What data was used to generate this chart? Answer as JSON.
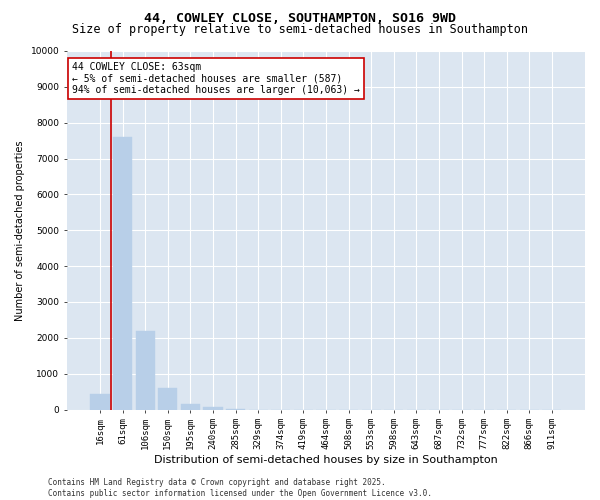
{
  "title": "44, COWLEY CLOSE, SOUTHAMPTON, SO16 9WD",
  "subtitle": "Size of property relative to semi-detached houses in Southampton",
  "xlabel": "Distribution of semi-detached houses by size in Southampton",
  "ylabel": "Number of semi-detached properties",
  "categories": [
    "16sqm",
    "61sqm",
    "106sqm",
    "150sqm",
    "195sqm",
    "240sqm",
    "285sqm",
    "329sqm",
    "374sqm",
    "419sqm",
    "464sqm",
    "508sqm",
    "553sqm",
    "598sqm",
    "643sqm",
    "687sqm",
    "732sqm",
    "777sqm",
    "822sqm",
    "866sqm",
    "911sqm"
  ],
  "values": [
    430,
    7600,
    2200,
    600,
    150,
    70,
    10,
    0,
    0,
    0,
    0,
    0,
    0,
    0,
    0,
    0,
    0,
    0,
    0,
    0,
    0
  ],
  "bar_color": "#b8cfe8",
  "bar_edge_color": "#b8cfe8",
  "annotation_text": "44 COWLEY CLOSE: 63sqm\n← 5% of semi-detached houses are smaller (587)\n94% of semi-detached houses are larger (10,063) →",
  "annotation_box_color": "#ffffff",
  "annotation_box_edgecolor": "#cc0000",
  "vline_color": "#cc0000",
  "vline_x_index": 1,
  "ylim": [
    0,
    10000
  ],
  "yticks": [
    0,
    1000,
    2000,
    3000,
    4000,
    5000,
    6000,
    7000,
    8000,
    9000,
    10000
  ],
  "background_color": "#dce6f1",
  "grid_color": "#ffffff",
  "fig_bg_color": "#ffffff",
  "footer": "Contains HM Land Registry data © Crown copyright and database right 2025.\nContains public sector information licensed under the Open Government Licence v3.0.",
  "title_fontsize": 9.5,
  "subtitle_fontsize": 8.5,
  "xlabel_fontsize": 8,
  "ylabel_fontsize": 7,
  "tick_fontsize": 6.5,
  "annotation_fontsize": 7,
  "footer_fontsize": 5.5
}
